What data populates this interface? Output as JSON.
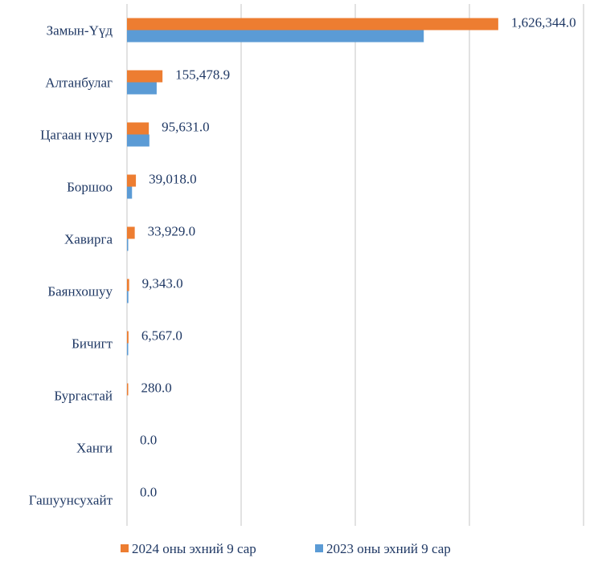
{
  "chart_data": {
    "type": "bar",
    "orientation": "horizontal",
    "categories": [
      "Замын-Үүд",
      "Алтанбулаг",
      "Цагаан нуур",
      "Боршоо",
      "Хавирга",
      "Баянхошуу",
      "Бичигт",
      "Бургастай",
      "Ханги",
      "Гашуунсухайт"
    ],
    "series": [
      {
        "name": "2024 оны эхний 9 сар",
        "color": "#ed7d31",
        "values": [
          1626344.0,
          155478.9,
          95631.0,
          39018.0,
          33929.0,
          9343.0,
          6567.0,
          280.0,
          0.0,
          0.0
        ],
        "labels": [
          "1,626,344.0",
          "155,478.9",
          "95,631.0",
          "39,018.0",
          "33,929.0",
          "9,343.0",
          "6,567.0",
          "280.0",
          "0.0",
          "0.0"
        ]
      },
      {
        "name": "2023 оны эхний 9 сар",
        "color": "#5b9bd5",
        "values": [
          1300000,
          130000,
          98000,
          22000,
          4000,
          6000,
          1500,
          0,
          0,
          0
        ]
      }
    ],
    "xlim": [
      0,
      2000000
    ],
    "gridlines": 4,
    "grid": true,
    "legend_position": "bottom"
  }
}
